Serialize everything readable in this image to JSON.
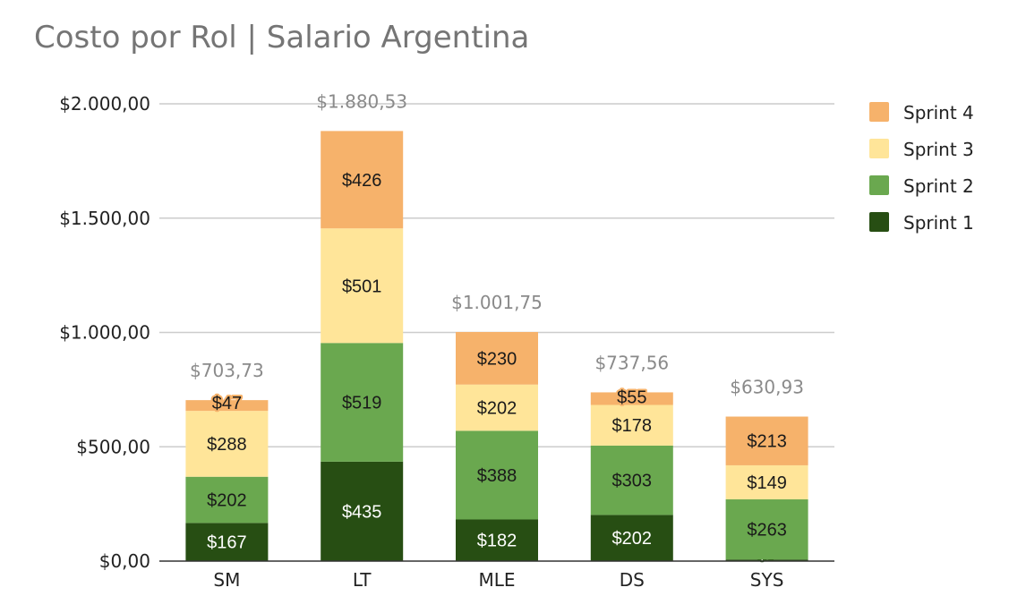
{
  "chart_data": {
    "type": "bar",
    "stacked": true,
    "title": "Costo por Rol | Salario Argentina",
    "xlabel": "",
    "ylabel": "",
    "ylim": [
      0,
      2000
    ],
    "yticks": [
      {
        "value": 0,
        "label": "$0,00"
      },
      {
        "value": 500,
        "label": "$500,00"
      },
      {
        "value": 1000,
        "label": "$1.000,00"
      },
      {
        "value": 1500,
        "label": "$1.500,00"
      },
      {
        "value": 2000,
        "label": "$2.000,00"
      }
    ],
    "grid": true,
    "legend_position": "right",
    "categories": [
      "SM",
      "LT",
      "MLE",
      "DS",
      "SYS"
    ],
    "totals": [
      "$703,73",
      "$1.880,53",
      "$1.001,75",
      "$737,56",
      "$630,93"
    ],
    "series": [
      {
        "name": "Sprint 1",
        "color": "#274e13",
        "text_color": "#ffffff",
        "values": [
          167,
          435,
          182,
          202,
          7
        ],
        "labels": [
          "$167",
          "$435",
          "$182",
          "$202",
          "$7"
        ]
      },
      {
        "name": "Sprint 2",
        "color": "#6aa84f",
        "text_color": "#1a1a1a",
        "values": [
          202,
          519,
          388,
          303,
          263
        ],
        "labels": [
          "$202",
          "$519",
          "$388",
          "$303",
          "$263"
        ]
      },
      {
        "name": "Sprint 3",
        "color": "#ffe599",
        "text_color": "#1a1a1a",
        "values": [
          288,
          501,
          202,
          178,
          149
        ],
        "labels": [
          "$288",
          "$501",
          "$202",
          "$178",
          "$149"
        ]
      },
      {
        "name": "Sprint 4",
        "color": "#f6b26b",
        "text_color": "#1a1a1a",
        "values": [
          47,
          426,
          230,
          55,
          213
        ],
        "labels": [
          "$47",
          "$426",
          "$230",
          "$55",
          "$213"
        ]
      }
    ]
  }
}
